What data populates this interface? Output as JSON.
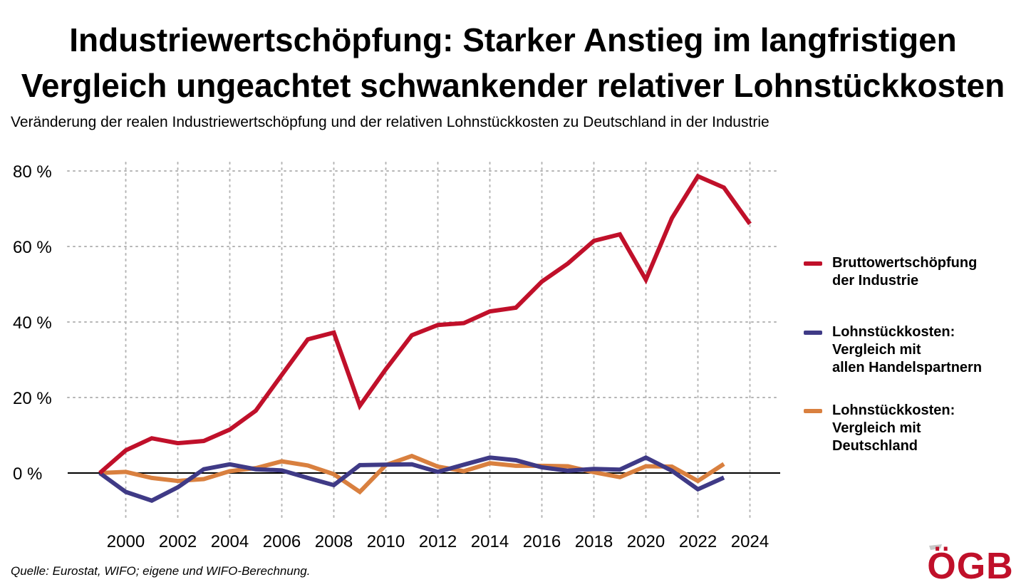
{
  "title_line1": "Industriewertschöpfung: Starker Anstieg im langfristigen",
  "title_line2": "Vergleich ungeachtet schwankender relativer Lohnstückkosten",
  "subtitle": "Veränderung der realen Industriewertschöpfung und der relativen Lohnstückkosten zu Deutschland in der Industrie",
  "source": "Quelle: Eurostat, WIFO; eigene und WIFO-Berechnung.",
  "logo_text": "ÖGB",
  "colors": {
    "wertschoepfung": "#c0102a",
    "handelspartner": "#3f3a86",
    "deutschland": "#d9803f",
    "logo": "#c0102a"
  },
  "legend": [
    {
      "label": "Bruttowertschöpfung\nder Industrie"
    },
    {
      "label": "Lohnstückkosten:\nVergleich mit\nallen Handelspartnern"
    },
    {
      "label": "Lohnstückkosten:\nVergleich mit\nDeutschland"
    }
  ],
  "chart_data": {
    "type": "line",
    "x": [
      1999,
      2000,
      2001,
      2002,
      2003,
      2004,
      2005,
      2006,
      2007,
      2008,
      2009,
      2010,
      2011,
      2012,
      2013,
      2014,
      2015,
      2016,
      2017,
      2018,
      2019,
      2020,
      2021,
      2022,
      2023,
      2024
    ],
    "xticks": [
      2000,
      2002,
      2004,
      2006,
      2008,
      2010,
      2012,
      2014,
      2016,
      2018,
      2020,
      2022,
      2024
    ],
    "xtick_labels": [
      "2000",
      "2002",
      "2004",
      "2006",
      "2008",
      "2010",
      "2012",
      "2014",
      "2016",
      "2018",
      "2020",
      "2022",
      "2024"
    ],
    "yticks": [
      0,
      20,
      40,
      60,
      80
    ],
    "ytick_labels": [
      "0 %",
      "20 %",
      "40 %",
      "60 %",
      "80 %"
    ],
    "ylim": [
      -12,
      83
    ],
    "grid": true,
    "legend_position": "right",
    "series": [
      {
        "name": "Bruttowertschöpfung der Industrie",
        "color": "#c0102a",
        "values": [
          0,
          6,
          9.2,
          7.9,
          8.5,
          11.5,
          16.5,
          26,
          35.4,
          37.2,
          17.8,
          27.5,
          36.5,
          39.2,
          39.7,
          42.8,
          43.8,
          50.7,
          55.5,
          61.5,
          63.2,
          51.2,
          67.5,
          78.6,
          75.6,
          66
        ]
      },
      {
        "name": "Lohnstückkosten: Vergleich mit allen Handelspartnern",
        "color": "#3f3a86",
        "values": [
          0,
          -5,
          -7.3,
          -3.8,
          1,
          2.3,
          1,
          0.7,
          -1.3,
          -3.2,
          2.1,
          2.2,
          2.3,
          0.3,
          2.2,
          4.1,
          3.4,
          1.5,
          0.6,
          1.1,
          0.9,
          4.1,
          0.6,
          -4.3,
          -1.2,
          null
        ]
      },
      {
        "name": "Lohnstückkosten: Vergleich mit Deutschland",
        "color": "#d9803f",
        "values": [
          0,
          0.3,
          -1.3,
          -2.1,
          -1.6,
          0.5,
          1.3,
          3.1,
          2,
          -0.3,
          -5,
          2.1,
          4.5,
          1.7,
          0.5,
          2.6,
          1.9,
          1.9,
          1.8,
          0.2,
          -1.1,
          1.8,
          1.7,
          -2.1,
          2.4,
          null
        ]
      }
    ]
  }
}
